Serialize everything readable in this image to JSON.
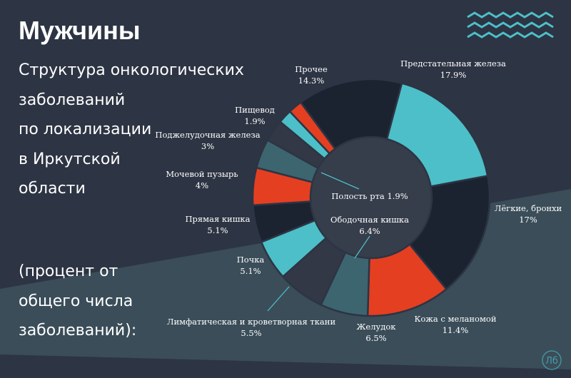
{
  "header": {
    "title": "Мужчины",
    "subtitle_lines": [
      "Структура онкологических",
      "заболеваний",
      "по локализации",
      "в Иркутской",
      "области"
    ],
    "note_lines": [
      "(процент от",
      "общего числа",
      "заболеваний):"
    ]
  },
  "colors": {
    "background": "#2d3443",
    "background_band": "#3a4d59",
    "accent_teal": "#4dbfc8",
    "accent_red": "#e53f22",
    "navy": "#1b2230",
    "slate": "#3c6570",
    "gray": "#323845",
    "hole": "#363d4b",
    "wave": "#4dbfc8",
    "logo": "#4dbfc8"
  },
  "decor": {
    "wave_icon": "wave-icon",
    "logo_text": "Лб"
  },
  "chart_data": {
    "type": "pie",
    "variant": "donut",
    "title": "Структура онкологических заболеваний по локализации в Иркутской области",
    "unit": "%",
    "slices": [
      {
        "label": "Предстательная железа",
        "value": 17.9,
        "value_text": "17.9%",
        "color": "#4dbfc8"
      },
      {
        "label": "Лёгкие, бронхи",
        "value": 17,
        "value_text": "17%",
        "color": "#1b2230"
      },
      {
        "label": "Кожа с меланомой",
        "value": 11.4,
        "value_text": "11.4%",
        "color": "#e53f22"
      },
      {
        "label": "Желудок",
        "value": 6.5,
        "value_text": "6.5%",
        "color": "#3c6570"
      },
      {
        "label": "Ободочная кишка",
        "value": 6.4,
        "value_text": "6.4%",
        "color": "#323845"
      },
      {
        "label": "Лимфатическая и кроветворная ткани",
        "value": 5.5,
        "value_text": "5.5%",
        "color": "#4dbfc8"
      },
      {
        "label": "Почка",
        "value": 5.1,
        "value_text": "5.1%",
        "color": "#1b2230"
      },
      {
        "label": "Прямая кишка",
        "value": 5.1,
        "value_text": "5.1%",
        "color": "#e53f22"
      },
      {
        "label": "Мочевой пузырь",
        "value": 4,
        "value_text": "4%",
        "color": "#3c6570"
      },
      {
        "label": "Поджелудочная железа",
        "value": 3,
        "value_text": "3%",
        "color": "#323845"
      },
      {
        "label": "Полость рта",
        "value": 1.9,
        "value_text": "1.9%",
        "color": "#4dbfc8"
      },
      {
        "label": "Пищевод",
        "value": 1.9,
        "value_text": "1.9%",
        "color": "#e53f22"
      },
      {
        "label": "Прочее",
        "value": 14.3,
        "value_text": "14.3%",
        "color": "#1b2230"
      }
    ]
  }
}
